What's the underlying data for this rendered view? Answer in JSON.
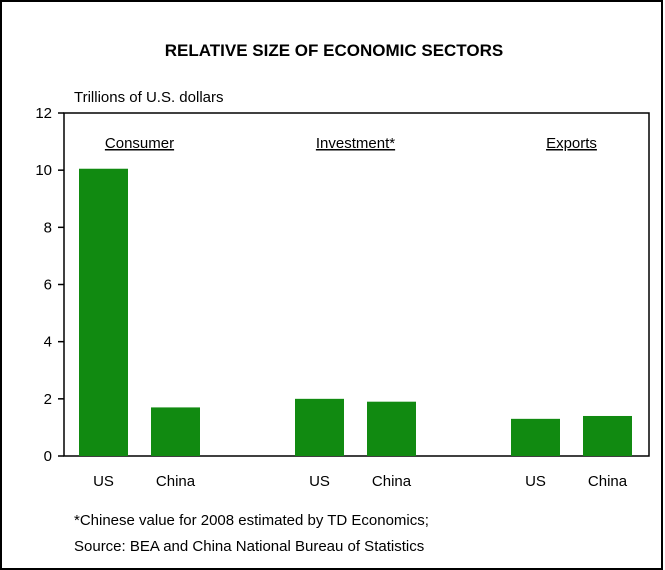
{
  "chart_data": {
    "type": "bar",
    "title": "RELATIVE SIZE OF ECONOMIC SECTORS",
    "ylabel": "Trillions of U.S. dollars",
    "ylim": [
      0,
      12
    ],
    "yticks": [
      0,
      2,
      4,
      6,
      8,
      10,
      12
    ],
    "groups": [
      {
        "label": "Consumer",
        "bars": [
          {
            "category": "US",
            "value": 10.05
          },
          {
            "category": "China",
            "value": 1.7
          }
        ]
      },
      {
        "label": "Investment*",
        "bars": [
          {
            "category": "US",
            "value": 2.0
          },
          {
            "category": "China",
            "value": 1.9
          }
        ]
      },
      {
        "label": "Exports",
        "bars": [
          {
            "category": "US",
            "value": 1.3
          },
          {
            "category": "China",
            "value": 1.4
          }
        ]
      }
    ],
    "bar_color": "#118a11",
    "grid": false,
    "notes": [
      "*Chinese value for 2008 estimated by TD Economics;",
      "Source: BEA and China National Bureau of Statistics"
    ]
  }
}
